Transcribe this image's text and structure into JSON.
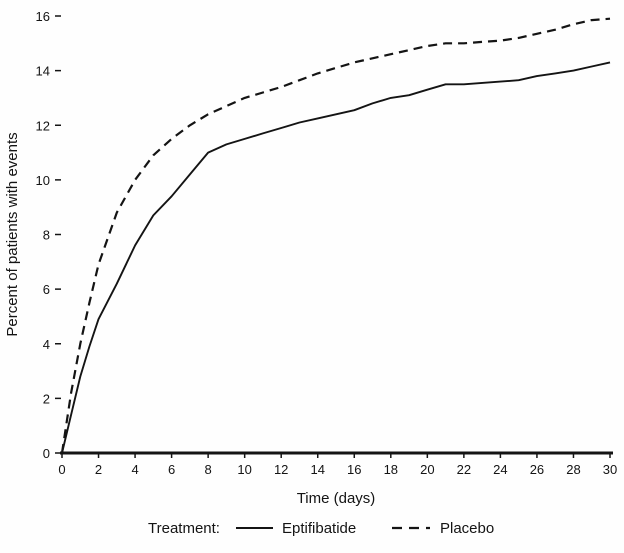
{
  "chart_data": {
    "type": "line",
    "title": "",
    "xlabel": "Time (days)",
    "ylabel": "Percent of patients with events",
    "legend_title": "Treatment:",
    "legend_position": "bottom",
    "grid": false,
    "line_color": "#141414",
    "xlim": [
      0,
      30
    ],
    "ylim": [
      0,
      16
    ],
    "xticks": [
      0,
      2,
      4,
      6,
      8,
      10,
      12,
      14,
      16,
      18,
      20,
      22,
      24,
      26,
      28,
      30
    ],
    "yticks": [
      0,
      2,
      4,
      6,
      8,
      10,
      12,
      14,
      16
    ],
    "x": [
      0,
      0.5,
      1,
      1.5,
      2,
      3,
      4,
      5,
      6,
      7,
      8,
      9,
      10,
      11,
      12,
      13,
      14,
      15,
      16,
      17,
      18,
      19,
      20,
      21,
      22,
      23,
      24,
      25,
      26,
      27,
      28,
      29,
      30
    ],
    "series": [
      {
        "name": "Eptifibatide",
        "style": "solid",
        "values": [
          0,
          1.4,
          2.8,
          3.9,
          4.9,
          6.2,
          7.6,
          8.7,
          9.4,
          10.2,
          11.0,
          11.3,
          11.5,
          11.7,
          11.9,
          12.1,
          12.25,
          12.4,
          12.55,
          12.8,
          13.0,
          13.1,
          13.3,
          13.5,
          13.5,
          13.55,
          13.6,
          13.65,
          13.8,
          13.9,
          14.0,
          14.15,
          14.3
        ]
      },
      {
        "name": "Placebo",
        "style": "dashed",
        "values": [
          0,
          2.2,
          4.0,
          5.5,
          6.9,
          8.8,
          10.0,
          10.9,
          11.5,
          12.0,
          12.4,
          12.7,
          13.0,
          13.2,
          13.4,
          13.65,
          13.9,
          14.1,
          14.3,
          14.45,
          14.6,
          14.75,
          14.9,
          15.0,
          15.0,
          15.05,
          15.1,
          15.2,
          15.35,
          15.5,
          15.7,
          15.85,
          15.9
        ]
      }
    ]
  }
}
